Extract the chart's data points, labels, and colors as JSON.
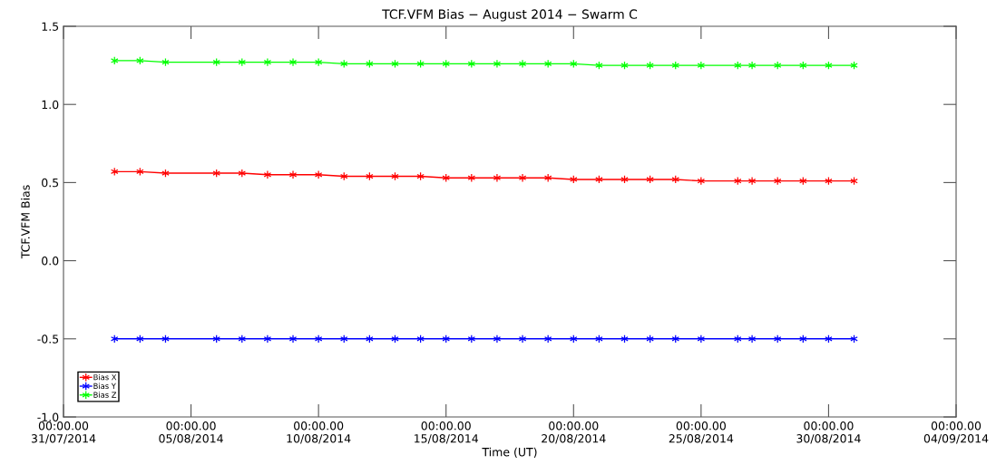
{
  "chart_data": {
    "type": "line",
    "title": "TCF.VFM Bias − August 2014 − Swarm C",
    "xlabel": "Time (UT)",
    "ylabel": "TCF.VFM Bias",
    "x": [
      "2014-08-02",
      "2014-08-03",
      "2014-08-04",
      "2014-08-06",
      "2014-08-07",
      "2014-08-08",
      "2014-08-09",
      "2014-08-10",
      "2014-08-11",
      "2014-08-12",
      "2014-08-13",
      "2014-08-14",
      "2014-08-15",
      "2014-08-16",
      "2014-08-17",
      "2014-08-18",
      "2014-08-19",
      "2014-08-20",
      "2014-08-21",
      "2014-08-22",
      "2014-08-23",
      "2014-08-24",
      "2014-08-25",
      "2014-08-26T10:30",
      "2014-08-27",
      "2014-08-28",
      "2014-08-29",
      "2014-08-30",
      "2014-08-31"
    ],
    "series": [
      {
        "name": "Bias X",
        "color": "#ff0000",
        "values": [
          0.57,
          0.57,
          0.56,
          0.56,
          0.56,
          0.55,
          0.55,
          0.55,
          0.54,
          0.54,
          0.54,
          0.54,
          0.53,
          0.53,
          0.53,
          0.53,
          0.53,
          0.52,
          0.52,
          0.52,
          0.52,
          0.52,
          0.51,
          0.51,
          0.51,
          0.51,
          0.51,
          0.51,
          0.51
        ]
      },
      {
        "name": "Bias Y",
        "color": "#0000ff",
        "values": [
          -0.5,
          -0.5,
          -0.5,
          -0.5,
          -0.5,
          -0.5,
          -0.5,
          -0.5,
          -0.5,
          -0.5,
          -0.5,
          -0.5,
          -0.5,
          -0.5,
          -0.5,
          -0.5,
          -0.5,
          -0.5,
          -0.5,
          -0.5,
          -0.5,
          -0.5,
          -0.5,
          -0.5,
          -0.5,
          -0.5,
          -0.5,
          -0.5,
          -0.5
        ]
      },
      {
        "name": "Bias Z",
        "color": "#00ff00",
        "values": [
          1.28,
          1.28,
          1.27,
          1.27,
          1.27,
          1.27,
          1.27,
          1.27,
          1.26,
          1.26,
          1.26,
          1.26,
          1.26,
          1.26,
          1.26,
          1.26,
          1.26,
          1.26,
          1.25,
          1.25,
          1.25,
          1.25,
          1.25,
          1.25,
          1.25,
          1.25,
          1.25,
          1.25,
          1.25
        ]
      }
    ],
    "xlim": [
      "2014-07-31",
      "2014-09-04"
    ],
    "xticks": [
      {
        "value": "2014-07-31",
        "label": "00:00.00\n31/07/2014"
      },
      {
        "value": "2014-08-05",
        "label": "00:00.00\n05/08/2014"
      },
      {
        "value": "2014-08-10",
        "label": "00:00.00\n10/08/2014"
      },
      {
        "value": "2014-08-15",
        "label": "00:00.00\n15/08/2014"
      },
      {
        "value": "2014-08-20",
        "label": "00:00.00\n20/08/2014"
      },
      {
        "value": "2014-08-25",
        "label": "00:00.00\n25/08/2014"
      },
      {
        "value": "2014-08-30",
        "label": "00:00.00\n30/08/2014"
      },
      {
        "value": "2014-09-04",
        "label": "00:00.00\n04/09/2014"
      }
    ],
    "ylim": [
      -1.0,
      1.5
    ],
    "yticks": [
      {
        "value": -1.0,
        "label": "-1.0"
      },
      {
        "value": -0.5,
        "label": "-0.5"
      },
      {
        "value": 0.0,
        "label": "0.0"
      },
      {
        "value": 0.5,
        "label": "0.5"
      },
      {
        "value": 1.0,
        "label": "1.0"
      },
      {
        "value": 1.5,
        "label": "1.5"
      }
    ],
    "grid": false,
    "legend": "bottom left",
    "marker": "cross",
    "line_style": "solid"
  }
}
